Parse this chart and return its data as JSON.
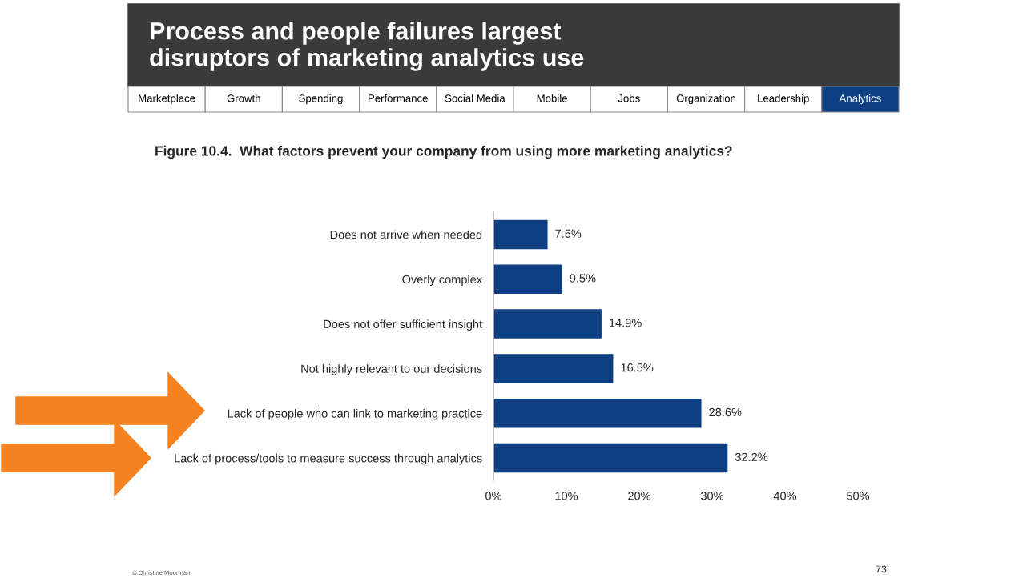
{
  "chart_data": {
    "type": "bar",
    "orientation": "horizontal",
    "title": "Process and people failures largest\ndisruptors of marketing analytics use",
    "subtitle": "Figure 10.4.  What factors prevent your company from using more marketing analytics?",
    "categories": [
      "Does not arrive when needed",
      "Overly complex",
      "Does not offer sufficient insight",
      "Not highly relevant to our decisions",
      "Lack of people who can link to marketing practice",
      "Lack of process/tools to measure success through analytics"
    ],
    "values": [
      7.5,
      9.5,
      14.9,
      16.5,
      28.6,
      32.2
    ],
    "value_labels": [
      "7.5%",
      "9.5%",
      "14.9%",
      "16.5%",
      "28.6%",
      "32.2%"
    ],
    "color": "#0e3f83",
    "xlim": [
      0,
      50
    ],
    "xticks": [
      {
        "value": 0,
        "label": "0%"
      },
      {
        "value": 10,
        "label": "10%"
      },
      {
        "value": 20,
        "label": "20%"
      },
      {
        "value": 30,
        "label": "30%"
      },
      {
        "value": 40,
        "label": "40%"
      },
      {
        "value": 50,
        "label": "50%"
      }
    ],
    "grid": false,
    "legend": false,
    "annotations": [
      "Marketplace",
      "Growth",
      "Spending",
      "Performance",
      "Social Media",
      "Mobile",
      "Jobs",
      "Organization",
      "Leadership",
      "Analytics",
      "© Christine Moorman",
      "73"
    ]
  }
}
